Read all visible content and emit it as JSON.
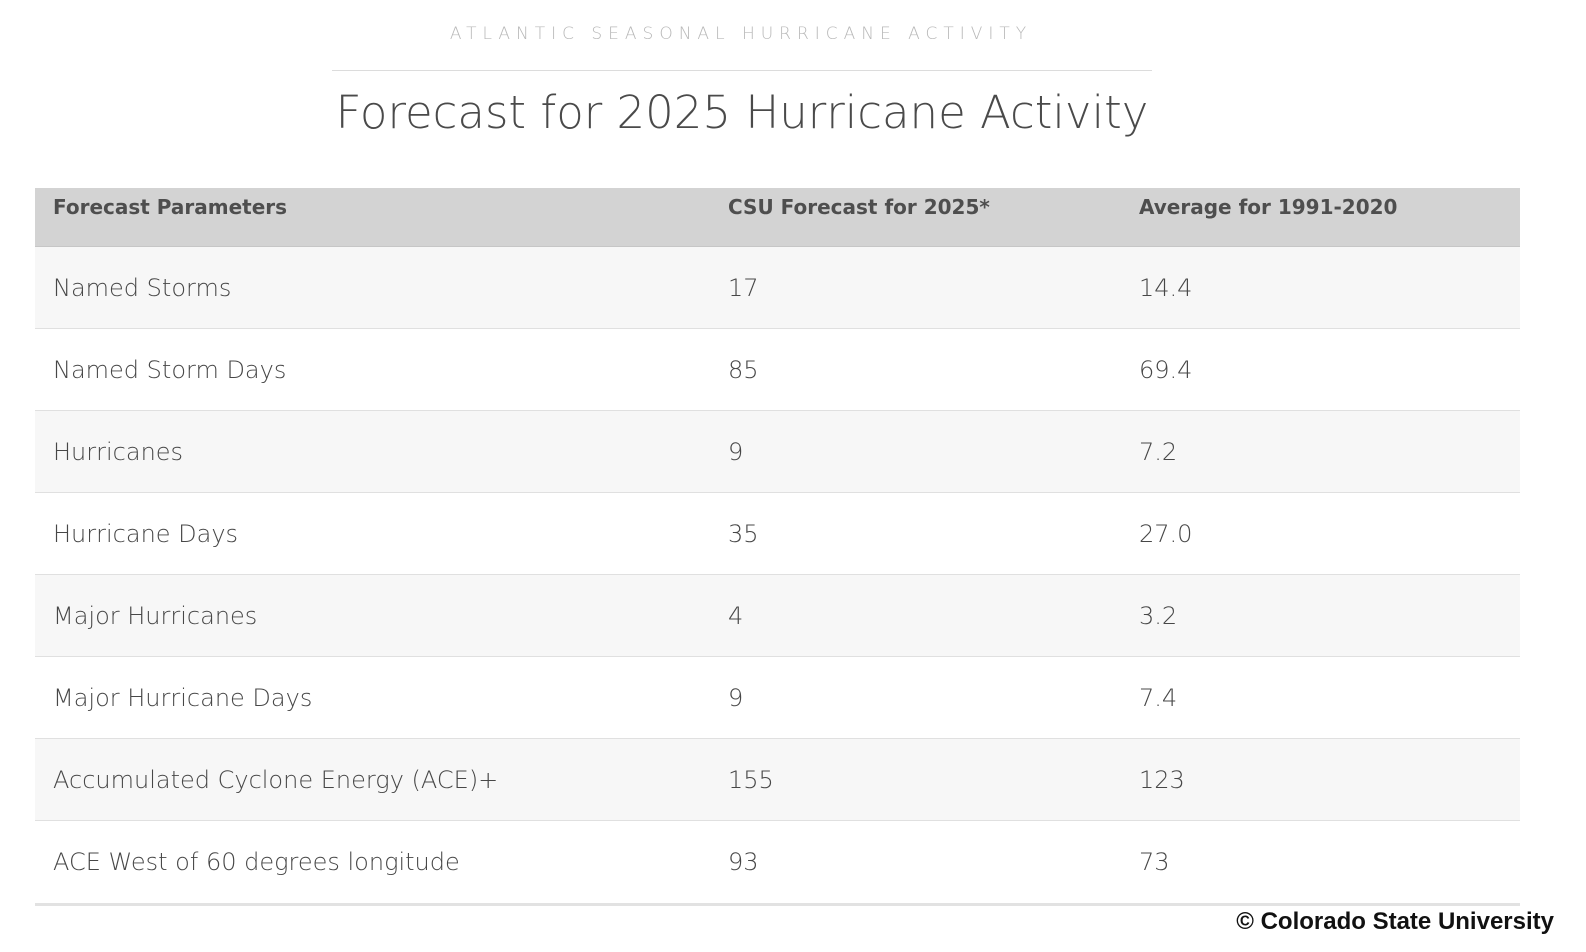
{
  "header": {
    "eyebrow": "ATLANTIC SEASONAL HURRICANE ACTIVITY",
    "title": "Forecast for 2025 Hurricane Activity"
  },
  "table": {
    "columns": [
      "Forecast Parameters",
      "CSU Forecast for 2025*",
      "Average for 1991-2020"
    ],
    "rows": [
      [
        "Named Storms",
        "17",
        "14.4"
      ],
      [
        "Named Storm Days",
        "85",
        "69.4"
      ],
      [
        "Hurricanes",
        "9",
        "7.2"
      ],
      [
        "Hurricane Days",
        "35",
        "27.0"
      ],
      [
        "Major Hurricanes",
        "4",
        "3.2"
      ],
      [
        "Major Hurricane Days",
        "9",
        "7.4"
      ],
      [
        "Accumulated Cyclone Energy (ACE)+",
        "155",
        "123"
      ],
      [
        "ACE West of 60 degrees longitude",
        "93",
        "73"
      ]
    ]
  },
  "footer": {
    "copyright": "© Colorado State University"
  }
}
